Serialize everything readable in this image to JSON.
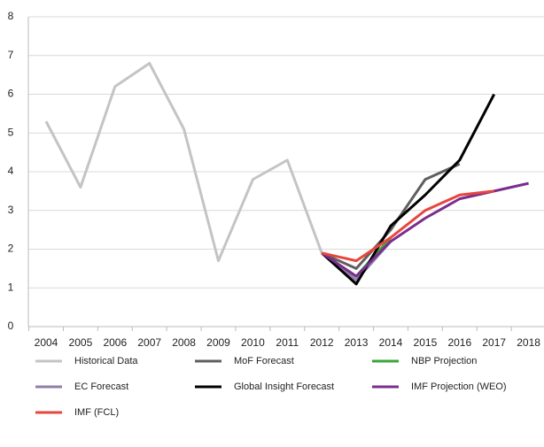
{
  "chart_data": {
    "type": "line",
    "categories": [
      "2004",
      "2005",
      "2006",
      "2007",
      "2008",
      "2009",
      "2010",
      "2011",
      "2012",
      "2013",
      "2014",
      "2015",
      "2016",
      "2017",
      "2018"
    ],
    "series": [
      {
        "name": "Historical Data",
        "color": "#c4c4c4",
        "values": [
          5.3,
          3.6,
          6.2,
          6.8,
          5.1,
          1.7,
          3.8,
          4.3,
          1.9,
          null,
          null,
          null,
          null,
          null,
          null
        ]
      },
      {
        "name": "MoF Forecast",
        "color": "#5f5f5f",
        "values": [
          null,
          null,
          null,
          null,
          null,
          null,
          null,
          null,
          1.9,
          1.5,
          2.5,
          3.8,
          4.2,
          null,
          null
        ]
      },
      {
        "name": "NBP Projection",
        "color": "#3aa53a",
        "values": [
          null,
          null,
          null,
          null,
          null,
          null,
          null,
          null,
          1.9,
          1.3,
          2.3,
          null,
          null,
          null,
          null
        ]
      },
      {
        "name": "EC Forecast",
        "color": "#8e80a8",
        "values": [
          null,
          null,
          null,
          null,
          null,
          null,
          null,
          null,
          1.9,
          1.2,
          2.2,
          null,
          null,
          null,
          null
        ]
      },
      {
        "name": "Global Insight Forecast",
        "color": "#000000",
        "values": [
          null,
          null,
          null,
          null,
          null,
          null,
          null,
          null,
          1.9,
          1.1,
          2.6,
          3.4,
          4.3,
          6.0,
          null
        ]
      },
      {
        "name": "IMF Projection (WEO)",
        "color": "#7b2d8e",
        "values": [
          null,
          null,
          null,
          null,
          null,
          null,
          null,
          null,
          1.9,
          1.3,
          2.2,
          2.8,
          3.3,
          3.5,
          3.7
        ]
      },
      {
        "name": "IMF (FCL)",
        "color": "#e8453c",
        "values": [
          null,
          null,
          null,
          null,
          null,
          null,
          null,
          null,
          1.9,
          1.7,
          2.3,
          3.0,
          3.4,
          3.5,
          null
        ]
      }
    ],
    "ylim": [
      0,
      8
    ],
    "yticks": [
      0,
      1,
      2,
      3,
      4,
      5,
      6,
      7,
      8
    ],
    "grid": true,
    "legend": "bottom"
  }
}
